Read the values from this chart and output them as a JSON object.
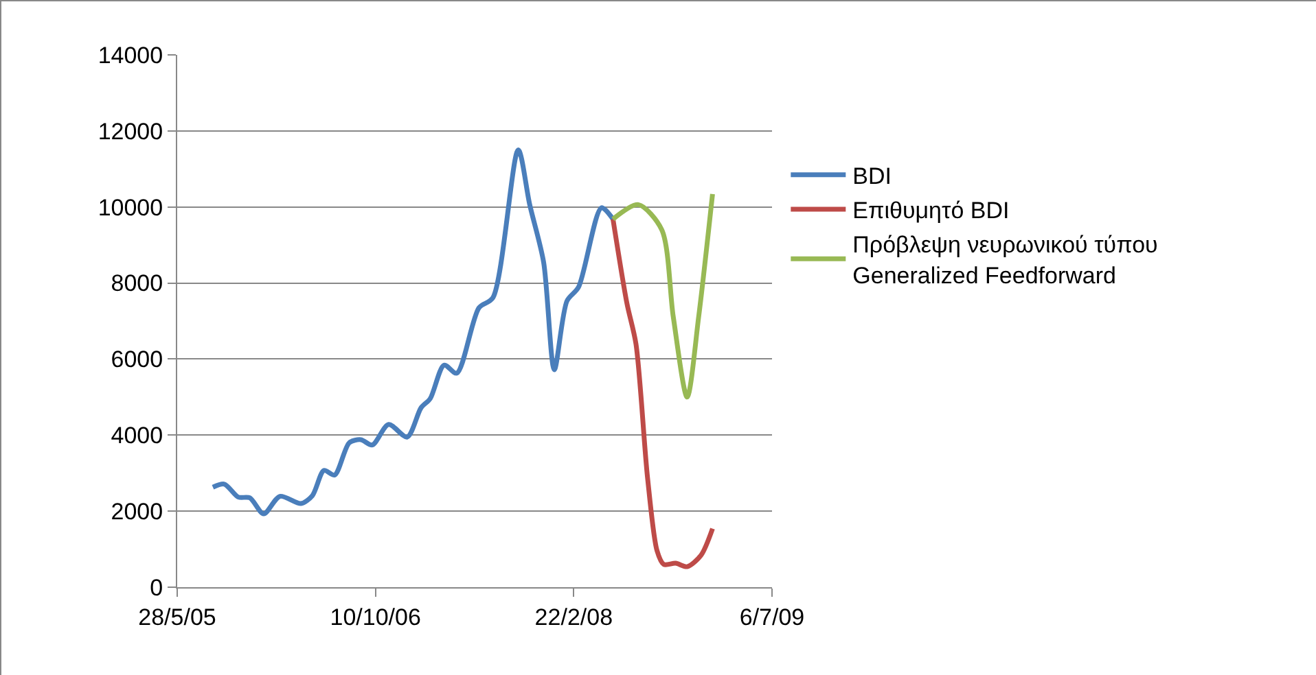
{
  "chart_data": {
    "type": "line",
    "legend": "right",
    "grid": "y",
    "xlim": [
      "2005-05-28",
      "2009-07-06"
    ],
    "xticks": [
      {
        "value": "2005-05-28",
        "label": "28/5/05"
      },
      {
        "value": "2006-10-10",
        "label": "10/10/06"
      },
      {
        "value": "2008-02-22",
        "label": "22/2/08"
      },
      {
        "value": "2009-07-06",
        "label": "6/7/09"
      }
    ],
    "ylim": [
      0,
      14000
    ],
    "yticks": [
      0,
      2000,
      4000,
      6000,
      8000,
      10000,
      12000,
      14000
    ],
    "series": [
      {
        "name": "BDI",
        "color": "#4a7ebb",
        "x": [
          "2005-08-26",
          "2005-09-24",
          "2005-10-29",
          "2005-11-27",
          "2006-01-01",
          "2006-02-11",
          "2006-04-05",
          "2006-05-04",
          "2006-06-02",
          "2006-06-29",
          "2006-08-05",
          "2006-09-03",
          "2006-10-02",
          "2006-11-12",
          "2006-12-29",
          "2007-02-02",
          "2007-02-25",
          "2007-04-01",
          "2007-05-03",
          "2007-06-28",
          "2007-08-02",
          "2007-10-05",
          "2007-11-03",
          "2007-12-08",
          "2008-01-04",
          "2008-02-05",
          "2008-03-05",
          "2008-05-02",
          "2008-05-31"
        ],
        "values": [
          2630,
          2710,
          2370,
          2350,
          1930,
          2390,
          2200,
          2410,
          3070,
          2950,
          3800,
          3880,
          3740,
          4280,
          3950,
          4720,
          4960,
          5840,
          5630,
          7350,
          7610,
          11500,
          10060,
          8550,
          5720,
          7530,
          7890,
          9980,
          9680
        ]
      },
      {
        "name": "Επιθυμητό BDI",
        "color": "#be4b48",
        "x": [
          "2008-05-31",
          "2008-07-05",
          "2008-07-28",
          "2008-08-26",
          "2008-09-19",
          "2008-10-06",
          "2008-11-05",
          "2008-12-04",
          "2009-01-08",
          "2009-02-06"
        ],
        "values": [
          9680,
          7470,
          6390,
          2890,
          960,
          600,
          630,
          540,
          840,
          1540
        ]
      },
      {
        "name": "Πρόβλεψη νευρωνικού τύπου Generalized Feedforward",
        "color": "#98b954",
        "x": [
          "2008-05-31",
          "2008-08-03",
          "2008-10-01",
          "2008-10-30",
          "2008-12-04",
          "2009-01-02",
          "2009-02-06"
        ],
        "values": [
          9680,
          10060,
          9400,
          7110,
          5000,
          7110,
          10340
        ]
      }
    ]
  }
}
